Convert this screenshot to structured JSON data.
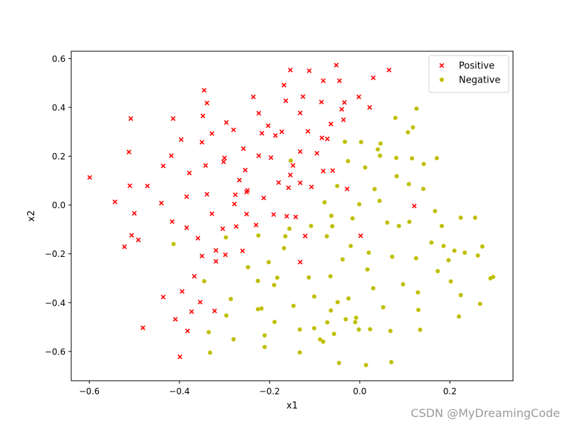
{
  "chart_data": {
    "type": "scatter",
    "title": "",
    "xlabel": "x1",
    "ylabel": "x2",
    "xlim": [
      -0.64,
      0.34
    ],
    "ylim": [
      -0.72,
      0.63
    ],
    "xticks": [
      -0.6,
      -0.4,
      -0.2,
      0.0,
      0.2
    ],
    "xtick_labels": [
      "−0.6",
      "−0.4",
      "−0.2",
      "0.0",
      "0.2"
    ],
    "yticks": [
      -0.6,
      -0.4,
      -0.2,
      0.0,
      0.2,
      0.4,
      0.6
    ],
    "ytick_labels": [
      "−0.6",
      "−0.4",
      "−0.2",
      "0.0",
      "0.2",
      "0.4",
      "0.6"
    ],
    "grid": false,
    "legend": "top-right",
    "series": [
      {
        "name": "Positive",
        "marker": "x",
        "color": "#ff0000",
        "points": [
          [
            -0.599,
            0.113
          ],
          [
            -0.543,
            0.013
          ],
          [
            -0.522,
            -0.171
          ],
          [
            -0.512,
            0.217
          ],
          [
            -0.51,
            0.079
          ],
          [
            -0.508,
            0.354
          ],
          [
            -0.506,
            -0.124
          ],
          [
            -0.5,
            -0.034
          ],
          [
            -0.491,
            -0.143
          ],
          [
            -0.481,
            -0.503
          ],
          [
            -0.471,
            0.078
          ],
          [
            -0.44,
            0.008
          ],
          [
            -0.436,
            0.16
          ],
          [
            -0.436,
            -0.377
          ],
          [
            -0.418,
            0.202
          ],
          [
            -0.414,
            0.354
          ],
          [
            -0.416,
            -0.068
          ],
          [
            -0.409,
            -0.468
          ],
          [
            -0.399,
            -0.622
          ],
          [
            -0.396,
            0.268
          ],
          [
            -0.394,
            -0.354
          ],
          [
            -0.384,
            -0.093
          ],
          [
            -0.384,
            0.034
          ],
          [
            -0.382,
            -0.516
          ],
          [
            -0.378,
            0.131
          ],
          [
            -0.373,
            -0.437
          ],
          [
            -0.367,
            -0.292
          ],
          [
            -0.359,
            -0.136
          ],
          [
            -0.354,
            -0.398
          ],
          [
            -0.35,
            -0.209
          ],
          [
            -0.35,
            0.257
          ],
          [
            -0.348,
            0.365
          ],
          [
            -0.345,
            0.47
          ],
          [
            -0.342,
            0.162
          ],
          [
            -0.339,
            0.044
          ],
          [
            -0.339,
            0.418
          ],
          [
            -0.328,
            -0.036
          ],
          [
            -0.328,
            0.293
          ],
          [
            -0.322,
            -0.434
          ],
          [
            -0.319,
            -0.186
          ],
          [
            -0.319,
            -0.231
          ],
          [
            -0.304,
            -0.097
          ],
          [
            -0.302,
            0.177
          ],
          [
            -0.3,
            0.193
          ],
          [
            -0.298,
            -0.204
          ],
          [
            -0.296,
            0.338
          ],
          [
            -0.28,
            0.308
          ],
          [
            -0.278,
            0.004
          ],
          [
            -0.276,
            0.042
          ],
          [
            -0.274,
            -0.088
          ],
          [
            -0.267,
            0.102
          ],
          [
            -0.26,
            -0.188
          ],
          [
            -0.258,
            0.231
          ],
          [
            -0.254,
            0.143
          ],
          [
            -0.251,
            -0.037
          ],
          [
            -0.251,
            0.053
          ],
          [
            -0.249,
            0.06
          ],
          [
            -0.236,
            0.443
          ],
          [
            -0.23,
            -0.082
          ],
          [
            -0.224,
            0.376
          ],
          [
            -0.224,
            0.202
          ],
          [
            -0.217,
            0.294
          ],
          [
            -0.213,
            0.029
          ],
          [
            -0.203,
            0.325
          ],
          [
            -0.197,
            0.194
          ],
          [
            -0.191,
            -0.039
          ],
          [
            -0.187,
            0.285
          ],
          [
            -0.18,
            0.092
          ],
          [
            -0.173,
            0.3
          ],
          [
            -0.168,
            0.491
          ],
          [
            -0.164,
            0.427
          ],
          [
            -0.162,
            -0.046
          ],
          [
            -0.158,
            0.071
          ],
          [
            -0.154,
            0.553
          ],
          [
            -0.154,
            0.123
          ],
          [
            -0.148,
            0.162
          ],
          [
            -0.142,
            -0.049
          ],
          [
            -0.132,
            0.377
          ],
          [
            -0.132,
            0.219
          ],
          [
            -0.132,
            0.091
          ],
          [
            -0.132,
            -0.234
          ],
          [
            -0.126,
            0.444
          ],
          [
            -0.121,
            -0.127
          ],
          [
            -0.115,
            0.302
          ],
          [
            -0.112,
            0.55
          ],
          [
            -0.107,
            0.074
          ],
          [
            -0.095,
            0.212
          ],
          [
            -0.085,
            0.422
          ],
          [
            -0.084,
            0.275
          ],
          [
            -0.081,
            0.509
          ],
          [
            -0.081,
            0.139
          ],
          [
            -0.072,
            0.271
          ],
          [
            -0.064,
            0.332
          ],
          [
            -0.06,
            0.141
          ],
          [
            -0.052,
            0.573
          ],
          [
            -0.045,
            0.509
          ],
          [
            -0.04,
            0.392
          ],
          [
            -0.036,
            0.349
          ],
          [
            -0.034,
            0.42
          ],
          [
            -0.028,
            0.066
          ],
          [
            -0.002,
            0.443
          ],
          [
            0.002,
            -0.126
          ],
          [
            0.022,
            0.4
          ],
          [
            0.03,
            0.521
          ],
          [
            0.065,
            0.553
          ],
          [
            0.121,
            -0.004
          ]
        ]
      },
      {
        "name": "Negative",
        "marker": "o",
        "color": "#bfbf00",
        "points": [
          [
            -0.413,
            -0.16
          ],
          [
            -0.345,
            -0.312
          ],
          [
            -0.335,
            -0.521
          ],
          [
            -0.332,
            -0.605
          ],
          [
            -0.297,
            -0.133
          ],
          [
            -0.296,
            -0.453
          ],
          [
            -0.286,
            -0.385
          ],
          [
            -0.28,
            -0.55
          ],
          [
            -0.248,
            -0.255
          ],
          [
            -0.226,
            -0.311
          ],
          [
            -0.225,
            -0.125
          ],
          [
            -0.226,
            -0.427
          ],
          [
            -0.218,
            -0.424
          ],
          [
            -0.211,
            -0.582
          ],
          [
            -0.211,
            -0.534
          ],
          [
            -0.202,
            -0.234
          ],
          [
            -0.19,
            -0.328
          ],
          [
            -0.189,
            -0.479
          ],
          [
            -0.183,
            -0.298
          ],
          [
            -0.168,
            -0.177
          ],
          [
            -0.165,
            -0.128
          ],
          [
            -0.156,
            -0.097
          ],
          [
            -0.153,
            0.182
          ],
          [
            -0.147,
            -0.413
          ],
          [
            -0.133,
            -0.604
          ],
          [
            -0.133,
            -0.51
          ],
          [
            -0.113,
            -0.297
          ],
          [
            -0.108,
            -0.086
          ],
          [
            -0.101,
            -0.375
          ],
          [
            -0.101,
            -0.505
          ],
          [
            -0.088,
            -0.551
          ],
          [
            -0.081,
            -0.56
          ],
          [
            -0.078,
            0.011
          ],
          [
            -0.073,
            -0.128
          ],
          [
            -0.072,
            -0.481
          ],
          [
            -0.065,
            -0.292
          ],
          [
            -0.064,
            -0.432
          ],
          [
            -0.063,
            -0.044
          ],
          [
            -0.061,
            -0.087
          ],
          [
            -0.057,
            -0.528
          ],
          [
            -0.05,
            0.078
          ],
          [
            -0.049,
            -0.398
          ],
          [
            -0.046,
            -0.647
          ],
          [
            -0.038,
            -0.223
          ],
          [
            -0.033,
            0.259
          ],
          [
            -0.031,
            -0.468
          ],
          [
            -0.025,
            -0.383
          ],
          [
            -0.026,
            0.18
          ],
          [
            -0.02,
            -0.168
          ],
          [
            -0.016,
            -0.055
          ],
          [
            -0.01,
            -0.48
          ],
          [
            -0.008,
            -0.462
          ],
          [
            -0.002,
            -0.51
          ],
          [
            -0.001,
            0.003
          ],
          [
            0.003,
            0.258
          ],
          [
            0.012,
            0.154
          ],
          [
            0.014,
            -0.656
          ],
          [
            0.017,
            -0.264
          ],
          [
            0.02,
            -0.195
          ],
          [
            0.023,
            -0.509
          ],
          [
            0.03,
            -0.341
          ],
          [
            0.033,
            0.065
          ],
          [
            0.04,
            0.228
          ],
          [
            0.044,
            0.017
          ],
          [
            0.045,
            0.202
          ],
          [
            0.046,
            0.252
          ],
          [
            0.052,
            -0.419
          ],
          [
            0.061,
            -0.072
          ],
          [
            0.068,
            -0.516
          ],
          [
            0.072,
            -0.212
          ],
          [
            0.07,
            -0.644
          ],
          [
            0.079,
            0.357
          ],
          [
            0.081,
            0.193
          ],
          [
            0.082,
            0.118
          ],
          [
            0.087,
            -0.086
          ],
          [
            0.096,
            -0.325
          ],
          [
            0.107,
            0.298
          ],
          [
            0.109,
            0.086
          ],
          [
            0.11,
            -0.069
          ],
          [
            0.116,
            0.191
          ],
          [
            0.118,
            0.318
          ],
          [
            0.125,
            -0.218
          ],
          [
            0.126,
            0.395
          ],
          [
            0.129,
            -0.358
          ],
          [
            0.13,
            -0.43
          ],
          [
            0.134,
            -0.511
          ],
          [
            0.141,
            0.066
          ],
          [
            0.142,
            0.168
          ],
          [
            0.159,
            -0.154
          ],
          [
            0.167,
            -0.025
          ],
          [
            0.171,
            0.192
          ],
          [
            0.173,
            -0.271
          ],
          [
            0.182,
            -0.086
          ],
          [
            0.186,
            -0.168
          ],
          [
            0.197,
            -0.226
          ],
          [
            0.202,
            -0.313
          ],
          [
            0.21,
            -0.187
          ],
          [
            0.22,
            -0.457
          ],
          [
            0.224,
            -0.369
          ],
          [
            0.224,
            -0.052
          ],
          [
            0.233,
            -0.195
          ],
          [
            0.256,
            -0.052
          ],
          [
            0.262,
            -0.207
          ],
          [
            0.267,
            -0.405
          ],
          [
            0.272,
            -0.17
          ],
          [
            0.29,
            -0.3
          ],
          [
            0.296,
            -0.295
          ]
        ]
      }
    ]
  },
  "watermark": "CSDN @MyDreamingCode"
}
